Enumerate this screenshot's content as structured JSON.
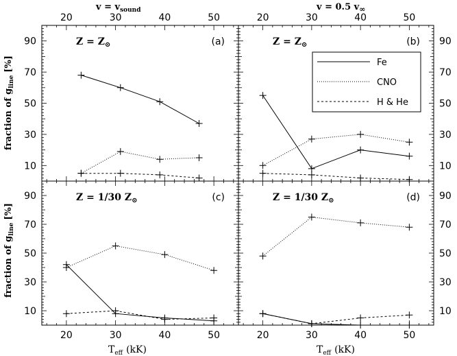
{
  "figure": {
    "top_left_title": "v = v",
    "top_left_title_sub": "sound",
    "top_right_title": "v = 0.5 v",
    "top_right_title_sub": "∞",
    "xlabel_main": "T",
    "xlabel_sub": "eff",
    "xlabel_unit": "(kK)",
    "ylabel_pre": "fraction of g",
    "ylabel_sub": "line",
    "ylabel_unit": "[%]",
    "legend": [
      "Fe",
      "CNO",
      "H & He"
    ]
  },
  "chart_data": [
    {
      "type": "line",
      "panel": "(a)",
      "label": "Z = Z",
      "label_symbol": "⊙",
      "xlim": [
        15,
        55
      ],
      "ylim": [
        0,
        100
      ],
      "xticks": [
        20,
        30,
        40,
        50
      ],
      "yticks": [
        10,
        30,
        50,
        70,
        90
      ],
      "grid": false,
      "series": [
        {
          "name": "Fe",
          "style": "solid",
          "x": [
            23,
            31,
            39,
            47
          ],
          "y": [
            68,
            60,
            51,
            37
          ]
        },
        {
          "name": "CNO",
          "style": "dotted",
          "x": [
            23,
            31,
            39,
            47
          ],
          "y": [
            5,
            19,
            14,
            15
          ]
        },
        {
          "name": "H & He",
          "style": "dashed",
          "x": [
            23,
            31,
            39,
            47
          ],
          "y": [
            5,
            5,
            4,
            2
          ]
        }
      ]
    },
    {
      "type": "line",
      "panel": "(b)",
      "label": "Z = Z",
      "label_symbol": "⊙",
      "xlim": [
        15,
        55
      ],
      "ylim": [
        0,
        100
      ],
      "xticks": [
        20,
        30,
        40,
        50
      ],
      "yticks": [
        10,
        30,
        50,
        70,
        90
      ],
      "grid": false,
      "legend_position": "top-right",
      "series": [
        {
          "name": "Fe",
          "style": "solid",
          "x": [
            20,
            30,
            40,
            50
          ],
          "y": [
            55,
            8,
            20,
            16
          ]
        },
        {
          "name": "CNO",
          "style": "dotted",
          "x": [
            20,
            30,
            40,
            50
          ],
          "y": [
            10,
            27,
            30,
            25
          ]
        },
        {
          "name": "H & He",
          "style": "dashed",
          "x": [
            20,
            30,
            40,
            50
          ],
          "y": [
            5,
            4,
            2,
            1
          ]
        }
      ]
    },
    {
      "type": "line",
      "panel": "(c)",
      "label": "Z = 1/30 Z",
      "label_symbol": "⊙",
      "xlim": [
        15,
        55
      ],
      "ylim": [
        0,
        100
      ],
      "xticks": [
        20,
        30,
        40,
        50
      ],
      "yticks": [
        10,
        30,
        50,
        70,
        90
      ],
      "grid": false,
      "series": [
        {
          "name": "Fe",
          "style": "solid",
          "x": [
            20,
            30,
            40,
            50
          ],
          "y": [
            42,
            8,
            5,
            3
          ]
        },
        {
          "name": "CNO",
          "style": "dotted",
          "x": [
            20,
            30,
            40,
            50
          ],
          "y": [
            40,
            55,
            49,
            38
          ]
        },
        {
          "name": "H & He",
          "style": "dashed",
          "x": [
            20,
            30,
            40,
            50
          ],
          "y": [
            8,
            10,
            4,
            5
          ]
        }
      ]
    },
    {
      "type": "line",
      "panel": "(d)",
      "label": "Z = 1/30 Z",
      "label_symbol": "⊙",
      "xlim": [
        15,
        55
      ],
      "ylim": [
        0,
        100
      ],
      "xticks": [
        20,
        30,
        40,
        50
      ],
      "yticks": [
        10,
        30,
        50,
        70,
        90
      ],
      "grid": false,
      "series": [
        {
          "name": "Fe",
          "style": "solid",
          "x": [
            20,
            30,
            40,
            50
          ],
          "y": [
            8,
            1,
            0,
            0
          ]
        },
        {
          "name": "CNO",
          "style": "dotted",
          "x": [
            20,
            30,
            40,
            50
          ],
          "y": [
            48,
            75,
            71,
            68
          ]
        },
        {
          "name": "H & He",
          "style": "dashed",
          "x": [
            20,
            30,
            40,
            50
          ],
          "y": [
            8,
            1,
            5,
            7
          ]
        }
      ]
    }
  ]
}
